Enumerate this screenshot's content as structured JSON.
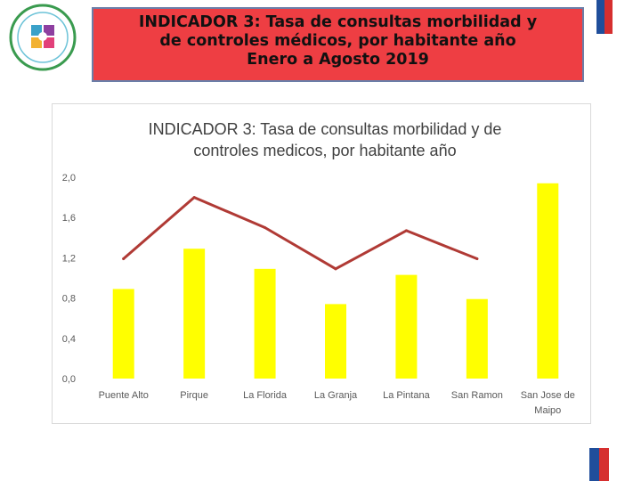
{
  "header": {
    "title_lines": [
      "INDICADOR 3: Tasa de consultas morbilidad y",
      "de controles médicos, por habitante año",
      "Enero a Agosto 2019"
    ]
  },
  "colors": {
    "title_background": "#ee3e43",
    "title_border": "#6b7ea8",
    "bar": "#ffff00",
    "line": "#b03a35",
    "flag_blue": "#1f4e9b",
    "flag_red": "#d62f2f"
  },
  "chart_data": {
    "type": "bar",
    "title_lines": [
      "INDICADOR 3: Tasa de consultas morbilidad y de",
      "controles medicos, por habitante año"
    ],
    "categories": [
      [
        "Puente Alto"
      ],
      [
        "Pirque"
      ],
      [
        "La Florida"
      ],
      [
        "La Granja"
      ],
      [
        "La Pintana"
      ],
      [
        "San Ramon"
      ],
      [
        "San Jose de",
        "Maipo"
      ]
    ],
    "series": [
      {
        "type": "bar",
        "values": [
          0.89,
          1.29,
          1.09,
          0.74,
          1.03,
          0.79,
          1.94
        ]
      },
      {
        "type": "line",
        "values": [
          1.19,
          1.8,
          1.5,
          1.09,
          1.47,
          1.19,
          null
        ]
      }
    ],
    "ylim": [
      0,
      2.0
    ],
    "yticks": [
      "0,0",
      "0,4",
      "0,8",
      "1,2",
      "1,6",
      "2,0"
    ],
    "ytick_values": [
      0,
      0.4,
      0.8,
      1.2,
      1.6,
      2.0
    ],
    "grid": false,
    "legend": "none",
    "xlabel": "",
    "ylabel": ""
  }
}
